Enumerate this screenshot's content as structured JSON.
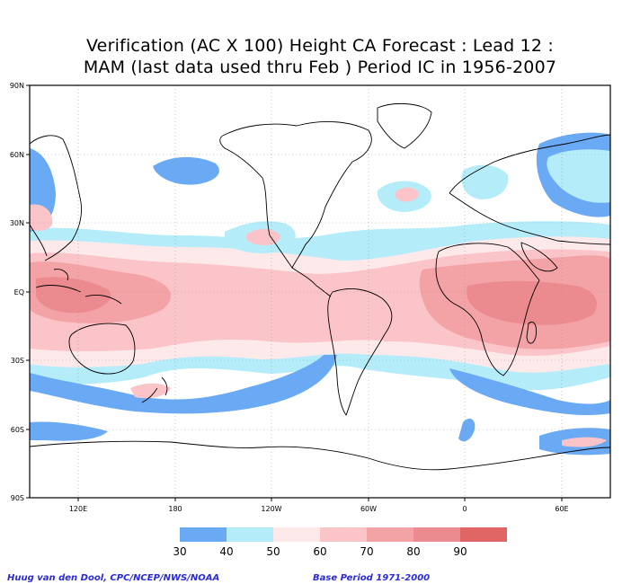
{
  "title": {
    "line1": "Verification (AC X 100) Height CA Forecast : Lead 12 :",
    "line2": "MAM (last data used thru Feb ) Period IC in 1956-2007"
  },
  "map": {
    "projection": "cylindrical equidistant",
    "lon_range": [
      60,
      420
    ],
    "lat_range": [
      -90,
      90
    ],
    "grid": "dotted every 30 degrees",
    "y_tick_labels": [
      "90N",
      "60N",
      "30N",
      "EQ",
      "30S",
      "60S",
      "90S"
    ],
    "x_tick_labels": [
      "120E",
      "180",
      "120W",
      "60W",
      "0",
      "60E"
    ]
  },
  "colorbar": {
    "levels": [
      "30",
      "40",
      "50",
      "60",
      "70",
      "80",
      "90"
    ],
    "colors": [
      "#6aaaf5",
      "#b4ecfa",
      "#fde8ea",
      "#fbc4c8",
      "#f3a2a6",
      "#eb8a8f",
      "#e06565"
    ]
  },
  "footer": {
    "left": "Huug van den Dool, CPC/NCEP/NWS/NOAA",
    "right": "Base Period 1971-2000"
  }
}
